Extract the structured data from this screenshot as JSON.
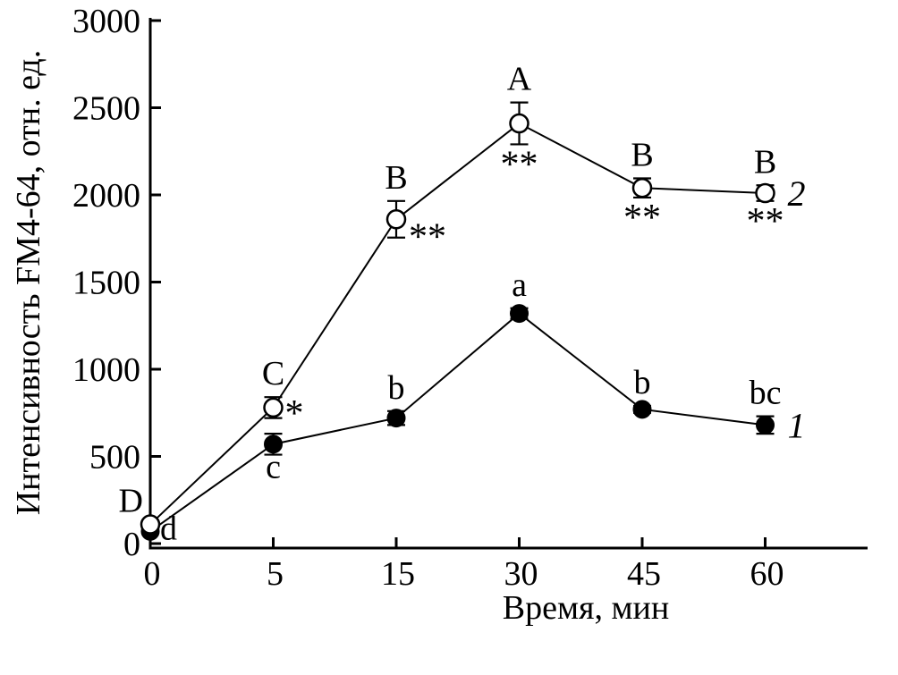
{
  "chart_data": {
    "type": "line",
    "title": "",
    "xlabel": "Время, мин",
    "ylabel": "Интенсивность FM4-64, отн. ед.",
    "x_categories": [
      "0",
      "5",
      "15",
      "30",
      "45",
      "60"
    ],
    "y_ticks": [
      0,
      500,
      1000,
      1500,
      2000,
      2500,
      3000
    ],
    "ylim": [
      0,
      3000
    ],
    "grid": false,
    "background_color": "#ffffff",
    "axis_color": "#000000",
    "series": [
      {
        "name": "1",
        "marker": "filled-circle",
        "marker_color": "#000000",
        "values": [
          70,
          570,
          720,
          1320,
          770,
          680
        ],
        "errors": [
          0,
          60,
          40,
          30,
          20,
          50
        ],
        "point_labels": [
          "d",
          "c",
          "b",
          "a",
          "b",
          "bc"
        ],
        "point_label_pos": [
          "right",
          "below",
          "above",
          "above",
          "above",
          "above"
        ],
        "significance": [
          "",
          "",
          "",
          "",
          "",
          ""
        ],
        "significance_pos": [
          "",
          "",
          "",
          "",
          "",
          ""
        ],
        "end_label": "1"
      },
      {
        "name": "2",
        "marker": "open-circle",
        "marker_color": "#ffffff",
        "values": [
          110,
          780,
          1860,
          2410,
          2040,
          2010
        ],
        "errors": [
          0,
          60,
          105,
          120,
          55,
          45
        ],
        "point_labels": [
          "D",
          "C",
          "B",
          "A",
          "B",
          "B"
        ],
        "point_label_pos": [
          "above-left",
          "above",
          "above",
          "above",
          "above",
          "above"
        ],
        "significance": [
          "",
          "*",
          "**",
          "**",
          "**",
          "**"
        ],
        "significance_pos": [
          "",
          "right",
          "below-right",
          "below",
          "below",
          "below"
        ],
        "end_label": "2"
      }
    ]
  }
}
